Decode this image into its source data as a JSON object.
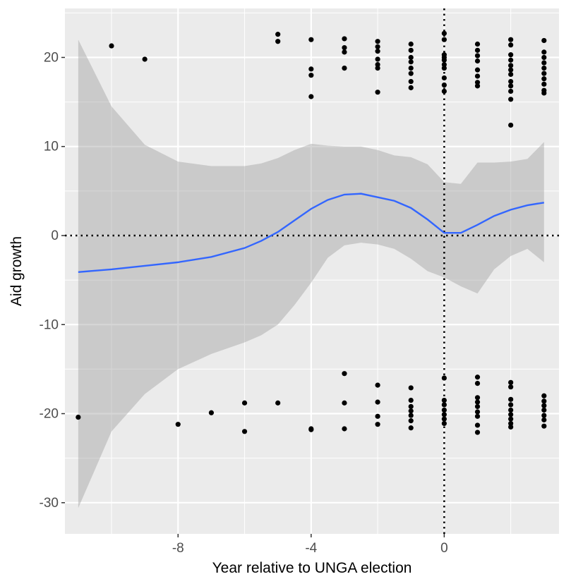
{
  "chart_data": {
    "type": "scatter",
    "title": "",
    "xlabel": "Year relative to UNGA election",
    "ylabel": "Aid growth",
    "xlim": [
      -11.4,
      3.45
    ],
    "ylim": [
      -33.5,
      25.5
    ],
    "x_ticks": [
      -8,
      -4,
      0
    ],
    "x_tick_labels": [
      "-8",
      "-4",
      "0"
    ],
    "y_ticks": [
      -30,
      -20,
      -10,
      0,
      10,
      20
    ],
    "y_tick_labels": [
      "-30",
      "-20",
      "-10",
      "0",
      "10",
      "20"
    ],
    "grid": true,
    "legend": "none",
    "reference_lines": {
      "vertical_x": 0,
      "horizontal_y": 0,
      "style": "dotted"
    },
    "colors": {
      "panel": "#ebebeb",
      "grid": "#ffffff",
      "points": "#000000",
      "smooth": "#3366ff",
      "band": "#999999",
      "reference": "#000000"
    },
    "points": [
      [
        -11,
        -20.4
      ],
      [
        -10,
        21.3
      ],
      [
        -9,
        19.8
      ],
      [
        -8,
        -21.2
      ],
      [
        -7,
        -19.9
      ],
      [
        -6,
        -18.8
      ],
      [
        -6,
        -22.0
      ],
      [
        -5,
        22.6
      ],
      [
        -5,
        21.8
      ],
      [
        -5,
        -18.8
      ],
      [
        -4,
        22.0
      ],
      [
        -4,
        18.7
      ],
      [
        -4,
        18.0
      ],
      [
        -4,
        15.6
      ],
      [
        -4,
        -21.7
      ],
      [
        -4,
        -21.8
      ],
      [
        -3,
        22.1
      ],
      [
        -3,
        21.1
      ],
      [
        -3,
        20.6
      ],
      [
        -3,
        18.8
      ],
      [
        -3,
        -15.5
      ],
      [
        -3,
        -18.8
      ],
      [
        -3,
        -21.7
      ],
      [
        -2,
        21.8
      ],
      [
        -2,
        21.2
      ],
      [
        -2,
        20.7
      ],
      [
        -2,
        19.8
      ],
      [
        -2,
        19.2
      ],
      [
        -2,
        18.8
      ],
      [
        -2,
        16.1
      ],
      [
        -2,
        -16.8
      ],
      [
        -2,
        -18.7
      ],
      [
        -2,
        -20.3
      ],
      [
        -2,
        -21.2
      ],
      [
        -1,
        21.5
      ],
      [
        -1,
        20.8
      ],
      [
        -1,
        20.0
      ],
      [
        -1,
        19.5
      ],
      [
        -1,
        18.8
      ],
      [
        -1,
        18.2
      ],
      [
        -1,
        17.3
      ],
      [
        -1,
        16.6
      ],
      [
        -1,
        -17.1
      ],
      [
        -1,
        -18.5
      ],
      [
        -1,
        -19.2
      ],
      [
        -1,
        -19.7
      ],
      [
        -1,
        -20.2
      ],
      [
        -1,
        -20.8
      ],
      [
        -1,
        -21.6
      ],
      [
        0,
        22.7
      ],
      [
        0,
        22.0
      ],
      [
        0,
        20.3
      ],
      [
        0,
        20.0
      ],
      [
        0,
        19.7
      ],
      [
        0,
        19.2
      ],
      [
        0,
        18.8
      ],
      [
        0,
        17.7
      ],
      [
        0,
        16.9
      ],
      [
        0,
        16.2
      ],
      [
        0,
        -16.0
      ],
      [
        0,
        -18.5
      ],
      [
        0,
        -19.0
      ],
      [
        0,
        -19.6
      ],
      [
        0,
        -20.1
      ],
      [
        0,
        -20.6
      ],
      [
        0,
        -21.1
      ],
      [
        1,
        21.5
      ],
      [
        1,
        20.8
      ],
      [
        1,
        20.2
      ],
      [
        1,
        19.6
      ],
      [
        1,
        18.6
      ],
      [
        1,
        17.9
      ],
      [
        1,
        17.2
      ],
      [
        1,
        16.8
      ],
      [
        1,
        -15.9
      ],
      [
        1,
        -16.6
      ],
      [
        1,
        -18.2
      ],
      [
        1,
        -18.7
      ],
      [
        1,
        -19.2
      ],
      [
        1,
        -19.8
      ],
      [
        1,
        -20.3
      ],
      [
        1,
        -21.3
      ],
      [
        1,
        -22.1
      ],
      [
        2,
        22.0
      ],
      [
        2,
        21.4
      ],
      [
        2,
        20.3
      ],
      [
        2,
        19.7
      ],
      [
        2,
        19.1
      ],
      [
        2,
        18.6
      ],
      [
        2,
        18.1
      ],
      [
        2,
        17.3
      ],
      [
        2,
        16.8
      ],
      [
        2,
        16.2
      ],
      [
        2,
        15.3
      ],
      [
        2,
        12.4
      ],
      [
        2,
        -16.5
      ],
      [
        2,
        -17.0
      ],
      [
        2,
        -18.4
      ],
      [
        2,
        -19.0
      ],
      [
        2,
        -19.6
      ],
      [
        2,
        -20.1
      ],
      [
        2,
        -20.6
      ],
      [
        2,
        -21.1
      ],
      [
        2,
        -21.5
      ],
      [
        3,
        21.9
      ],
      [
        3,
        20.6
      ],
      [
        3,
        20.0
      ],
      [
        3,
        19.4
      ],
      [
        3,
        18.8
      ],
      [
        3,
        18.2
      ],
      [
        3,
        17.6
      ],
      [
        3,
        17.0
      ],
      [
        3,
        16.3
      ],
      [
        3,
        16.0
      ],
      [
        3,
        -18.0
      ],
      [
        3,
        -18.6
      ],
      [
        3,
        -19.1
      ],
      [
        3,
        -19.6
      ],
      [
        3,
        -20.2
      ],
      [
        3,
        -20.7
      ],
      [
        3,
        -21.4
      ]
    ],
    "smooth": {
      "x": [
        -11,
        -10,
        -9,
        -8,
        -7,
        -6,
        -5.5,
        -5,
        -4.5,
        -4,
        -3.5,
        -3,
        -2.5,
        -2,
        -1.5,
        -1,
        -0.5,
        0,
        0.5,
        1,
        1.5,
        2,
        2.5,
        3
      ],
      "y": [
        -4.1,
        -3.8,
        -3.4,
        -3.0,
        -2.4,
        -1.4,
        -0.6,
        0.4,
        1.7,
        3.0,
        4.0,
        4.6,
        4.7,
        4.3,
        3.9,
        3.1,
        1.8,
        0.3,
        0.3,
        1.2,
        2.2,
        2.9,
        3.4,
        3.7
      ],
      "upper": [
        22.0,
        14.5,
        10.2,
        8.3,
        7.8,
        7.8,
        8.1,
        8.7,
        9.6,
        10.3,
        10.1,
        10.0,
        10.0,
        9.6,
        9.0,
        8.8,
        8.0,
        6.0,
        5.8,
        8.2,
        8.2,
        8.3,
        8.6,
        10.5
      ],
      "lower": [
        -30.6,
        -22.0,
        -17.8,
        -15.0,
        -13.3,
        -12.0,
        -11.2,
        -10.0,
        -7.8,
        -5.3,
        -2.5,
        -1.1,
        -0.8,
        -1.0,
        -1.5,
        -2.6,
        -4.0,
        -4.7,
        -5.7,
        -6.5,
        -3.8,
        -2.3,
        -1.5,
        -3.0
      ]
    }
  }
}
